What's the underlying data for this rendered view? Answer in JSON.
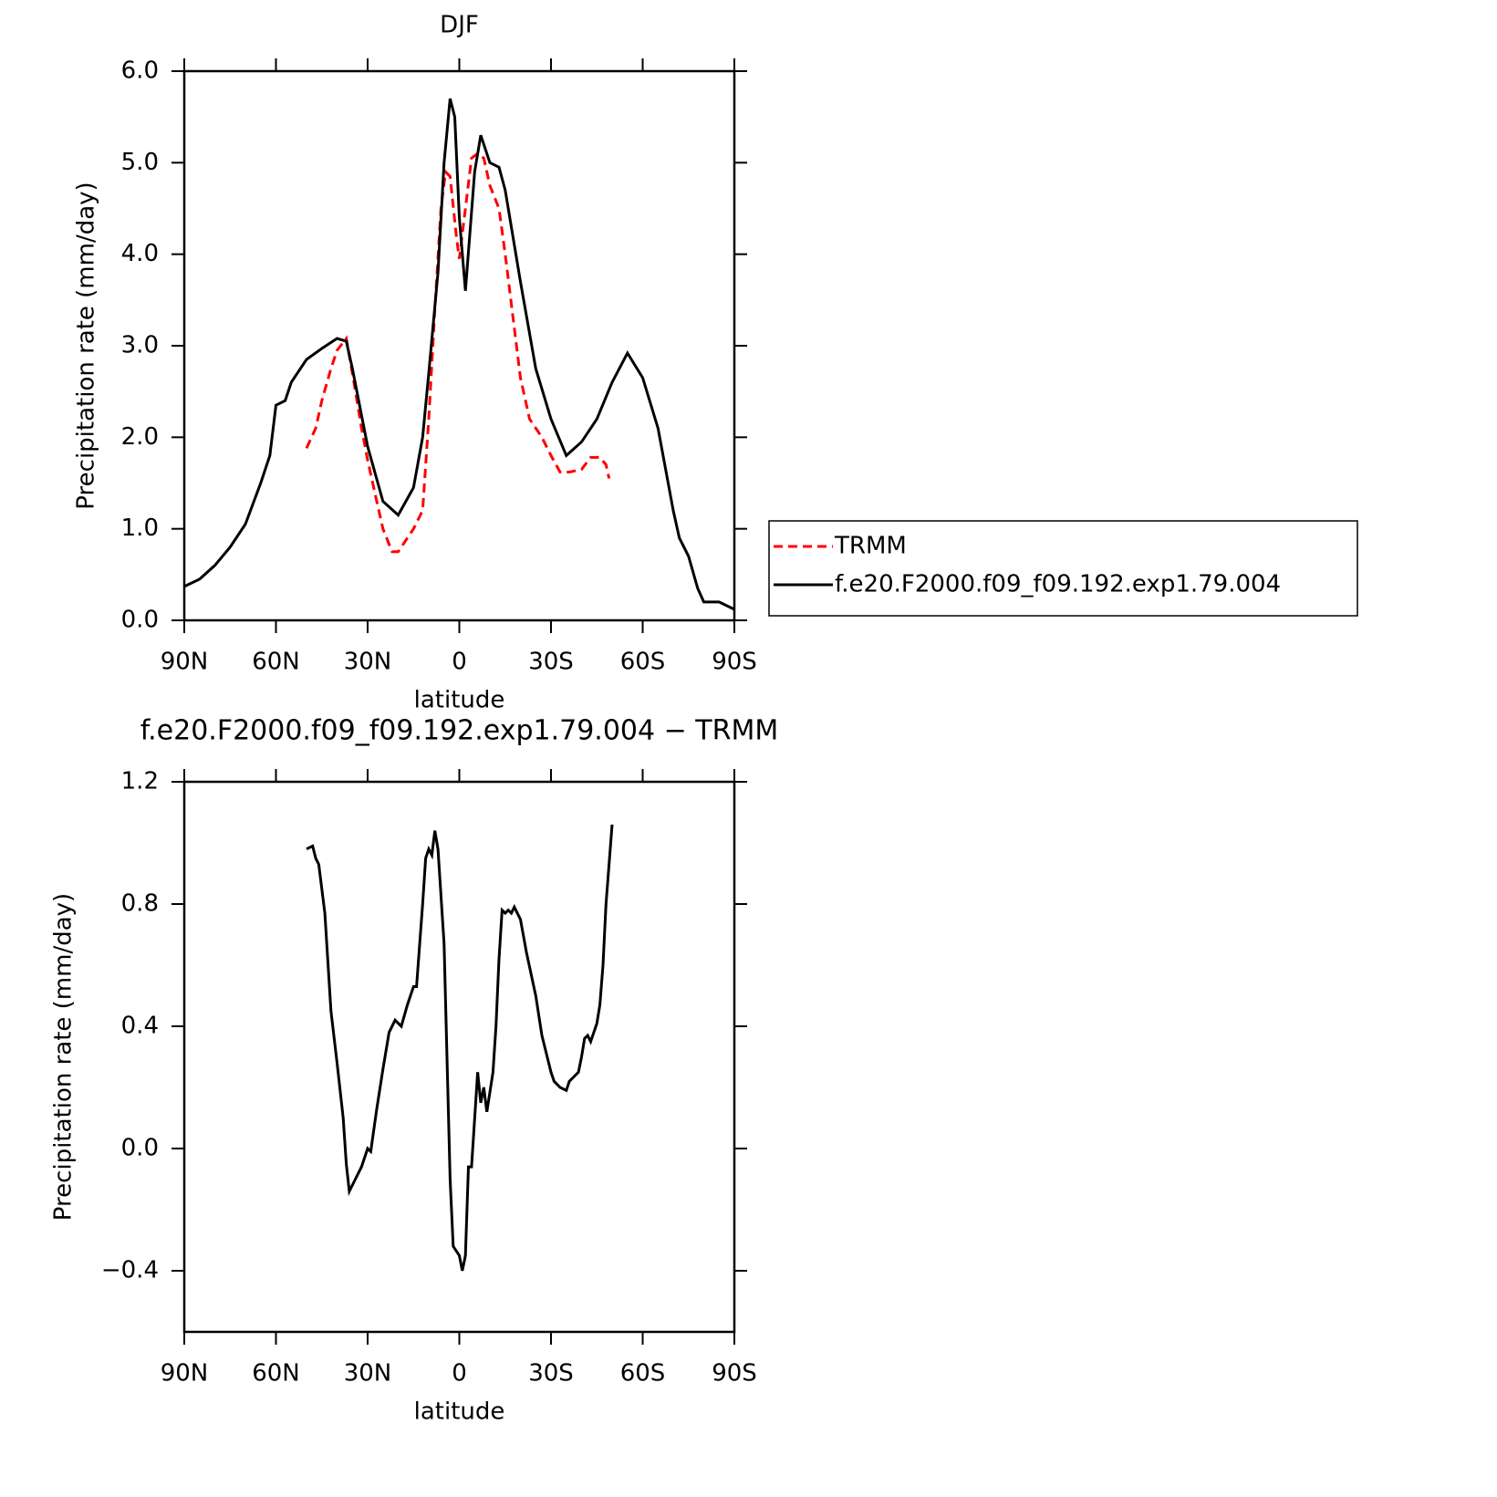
{
  "chart_data": [
    {
      "type": "line",
      "title": "DJF",
      "xlabel": "latitude",
      "ylabel": "Precipitation rate (mm/day)",
      "xlim": [
        90,
        -90
      ],
      "xticks": [
        {
          "value": 90,
          "label": "90N"
        },
        {
          "value": 60,
          "label": "60N"
        },
        {
          "value": 30,
          "label": "30N"
        },
        0,
        {
          "value": -30,
          "label": "30S"
        },
        {
          "value": -60,
          "label": "60S"
        },
        {
          "value": -90,
          "label": "90S"
        }
      ],
      "ylim": [
        0,
        6
      ],
      "yticks": [
        {
          "value": 0,
          "label": "0.0"
        },
        {
          "value": 1,
          "label": "1.0"
        },
        {
          "value": 2,
          "label": "2.0"
        },
        {
          "value": 3,
          "label": "3.0"
        },
        {
          "value": 4,
          "label": "4.0"
        },
        {
          "value": 5,
          "label": "5.0"
        },
        {
          "value": 6,
          "label": "6.0"
        }
      ],
      "legend": "right",
      "series": [
        {
          "name": "TRMM",
          "color": "#ff0000",
          "dash": true,
          "x": [
            50,
            47,
            45,
            42,
            40,
            37,
            35,
            32,
            30,
            27,
            25,
            22,
            20,
            17,
            15,
            12,
            10,
            8,
            6,
            4.5,
            3,
            1,
            0,
            -2,
            -4,
            -6,
            -8,
            -10,
            -13,
            -15,
            -20,
            -23,
            -27,
            -30,
            -33,
            -36,
            -40,
            -43,
            -46,
            -48,
            -49
          ],
          "values": [
            1.88,
            2.1,
            2.4,
            2.75,
            2.95,
            3.08,
            2.7,
            2.1,
            1.75,
            1.3,
            1.0,
            0.75,
            0.75,
            0.9,
            1.0,
            1.2,
            2.2,
            3.4,
            4.5,
            4.9,
            4.85,
            4.2,
            3.95,
            4.5,
            5.05,
            5.1,
            5.05,
            4.75,
            4.5,
            4.0,
            2.65,
            2.2,
            2.0,
            1.8,
            1.62,
            1.62,
            1.65,
            1.78,
            1.78,
            1.7,
            1.55
          ]
        },
        {
          "name": "f.e20.F2000.f09_f09.192.exp1.79.004",
          "color": "#000000",
          "dash": false,
          "x": [
            90,
            85,
            80,
            75,
            70,
            65,
            62,
            60,
            57,
            55,
            50,
            45,
            40,
            37,
            35,
            30,
            25,
            20,
            15,
            12,
            10,
            7,
            5,
            3,
            1.5,
            0,
            -2,
            -5,
            -7,
            -10,
            -13,
            -15,
            -20,
            -25,
            -30,
            -35,
            -40,
            -45,
            -50,
            -55,
            -60,
            -65,
            -70,
            -72,
            -75,
            -78,
            -80,
            -85,
            -90
          ],
          "values": [
            0.37,
            0.45,
            0.6,
            0.8,
            1.05,
            1.5,
            1.8,
            2.35,
            2.4,
            2.6,
            2.85,
            2.97,
            3.08,
            3.05,
            2.75,
            1.9,
            1.3,
            1.15,
            1.45,
            2.0,
            2.7,
            3.8,
            5.0,
            5.7,
            5.5,
            4.4,
            3.6,
            4.9,
            5.3,
            5.0,
            4.95,
            4.7,
            3.7,
            2.75,
            2.2,
            1.8,
            1.95,
            2.2,
            2.6,
            2.92,
            2.65,
            2.1,
            1.2,
            0.9,
            0.7,
            0.35,
            0.2,
            0.2,
            0.12
          ]
        }
      ]
    },
    {
      "type": "line",
      "title": "f.e20.F2000.f09_f09.192.exp1.79.004 − TRMM",
      "xlabel": "latitude",
      "ylabel": "Precipitation rate (mm/day)",
      "xlim": [
        90,
        -90
      ],
      "xticks": [
        {
          "value": 90,
          "label": "90N"
        },
        {
          "value": 60,
          "label": "60N"
        },
        {
          "value": 30,
          "label": "30N"
        },
        0,
        {
          "value": -30,
          "label": "30S"
        },
        {
          "value": -60,
          "label": "60S"
        },
        {
          "value": -90,
          "label": "90S"
        }
      ],
      "ylim": [
        -0.6,
        1.2
      ],
      "yticks": [
        {
          "value": -0.4,
          "label": "−0.4"
        },
        {
          "value": 0,
          "label": "0.0"
        },
        0.4,
        0.8,
        1.2
      ],
      "series": [
        {
          "color": "#000000",
          "dash": false,
          "x": [
            50,
            48,
            47,
            46,
            44,
            42,
            40,
            38,
            37,
            36,
            34,
            32,
            30,
            29,
            27,
            25,
            23,
            21,
            19,
            17,
            15,
            14,
            12,
            11,
            10,
            9,
            8,
            7,
            5,
            3,
            2,
            0,
            -1,
            -2,
            -3,
            -4,
            -6,
            -7,
            -8,
            -9,
            -11,
            -12,
            -13,
            -14,
            -15,
            -16,
            -17,
            -18,
            -20,
            -22,
            -25,
            -27,
            -30,
            -31,
            -33,
            -35,
            -36,
            -39,
            -40,
            -41,
            -42,
            -43,
            -45,
            -46,
            -47,
            -48,
            -50
          ],
          "values": [
            0.98,
            0.99,
            0.95,
            0.93,
            0.77,
            0.45,
            0.28,
            0.1,
            -0.05,
            -0.14,
            -0.1,
            -0.06,
            0.0,
            -0.01,
            0.13,
            0.26,
            0.38,
            0.42,
            0.4,
            0.47,
            0.53,
            0.53,
            0.8,
            0.95,
            0.98,
            0.96,
            1.04,
            0.98,
            0.67,
            -0.1,
            -0.32,
            -0.35,
            -0.4,
            -0.35,
            -0.06,
            -0.06,
            0.25,
            0.15,
            0.2,
            0.12,
            0.25,
            0.4,
            0.62,
            0.78,
            0.77,
            0.78,
            0.77,
            0.79,
            0.75,
            0.64,
            0.5,
            0.37,
            0.25,
            0.22,
            0.2,
            0.19,
            0.22,
            0.25,
            0.3,
            0.36,
            0.37,
            0.35,
            0.41,
            0.47,
            0.6,
            0.8,
            1.06
          ]
        }
      ]
    }
  ]
}
